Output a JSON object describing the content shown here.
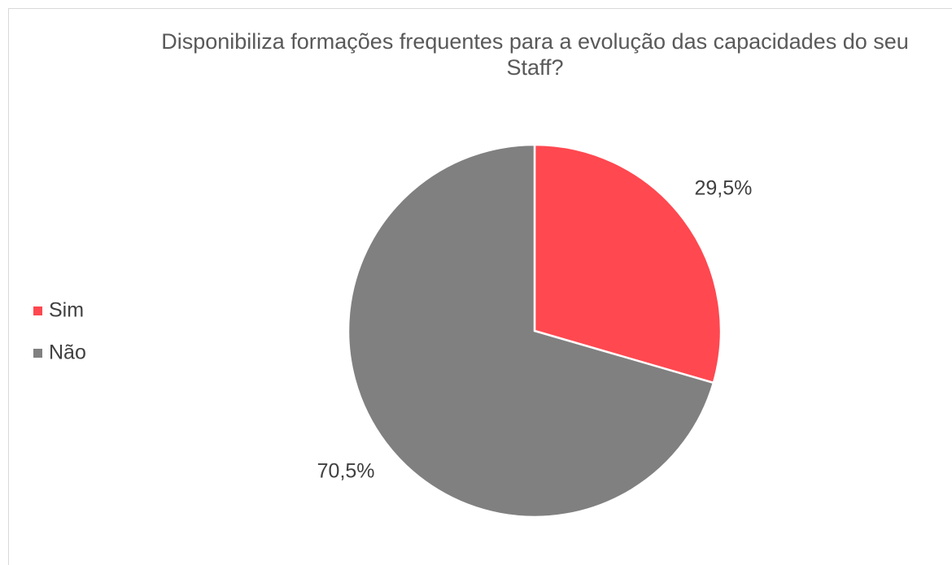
{
  "chart_data": {
    "type": "pie",
    "title": "Disponibiliza formações frequentes para a evolução das capacidades do seu Staff?",
    "categories": [
      "Sim",
      "Não"
    ],
    "values": [
      29.5,
      70.5
    ],
    "value_labels": [
      "29,5%",
      "70,5%"
    ],
    "colors": [
      "#ff4850",
      "#808080"
    ],
    "legend": "left"
  }
}
